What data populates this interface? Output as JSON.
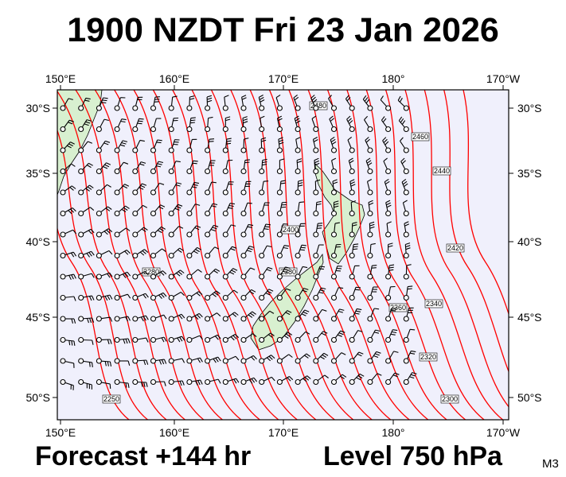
{
  "header": {
    "title": "1900 NZDT Fri 23 Jan 2026"
  },
  "footer": {
    "forecast": "Forecast +144 hr",
    "level": "Level 750 hPa",
    "model": "M3"
  },
  "map": {
    "lon_labels": [
      "150°E",
      "160°E",
      "170°E",
      "180°",
      "170°W"
    ],
    "lat_labels": [
      "30°S",
      "35°S",
      "40°S",
      "45°S",
      "50°S"
    ],
    "contour_labels": [
      "2480",
      "2460",
      "2440",
      "2420",
      "2400",
      "2380",
      "2360",
      "2340",
      "2320",
      "2300",
      "2280",
      "2250"
    ],
    "colors": {
      "ocean": "#f0f0fc",
      "land": "#d8f0d0",
      "contour": "#ff0000",
      "barb": "#000000"
    }
  }
}
